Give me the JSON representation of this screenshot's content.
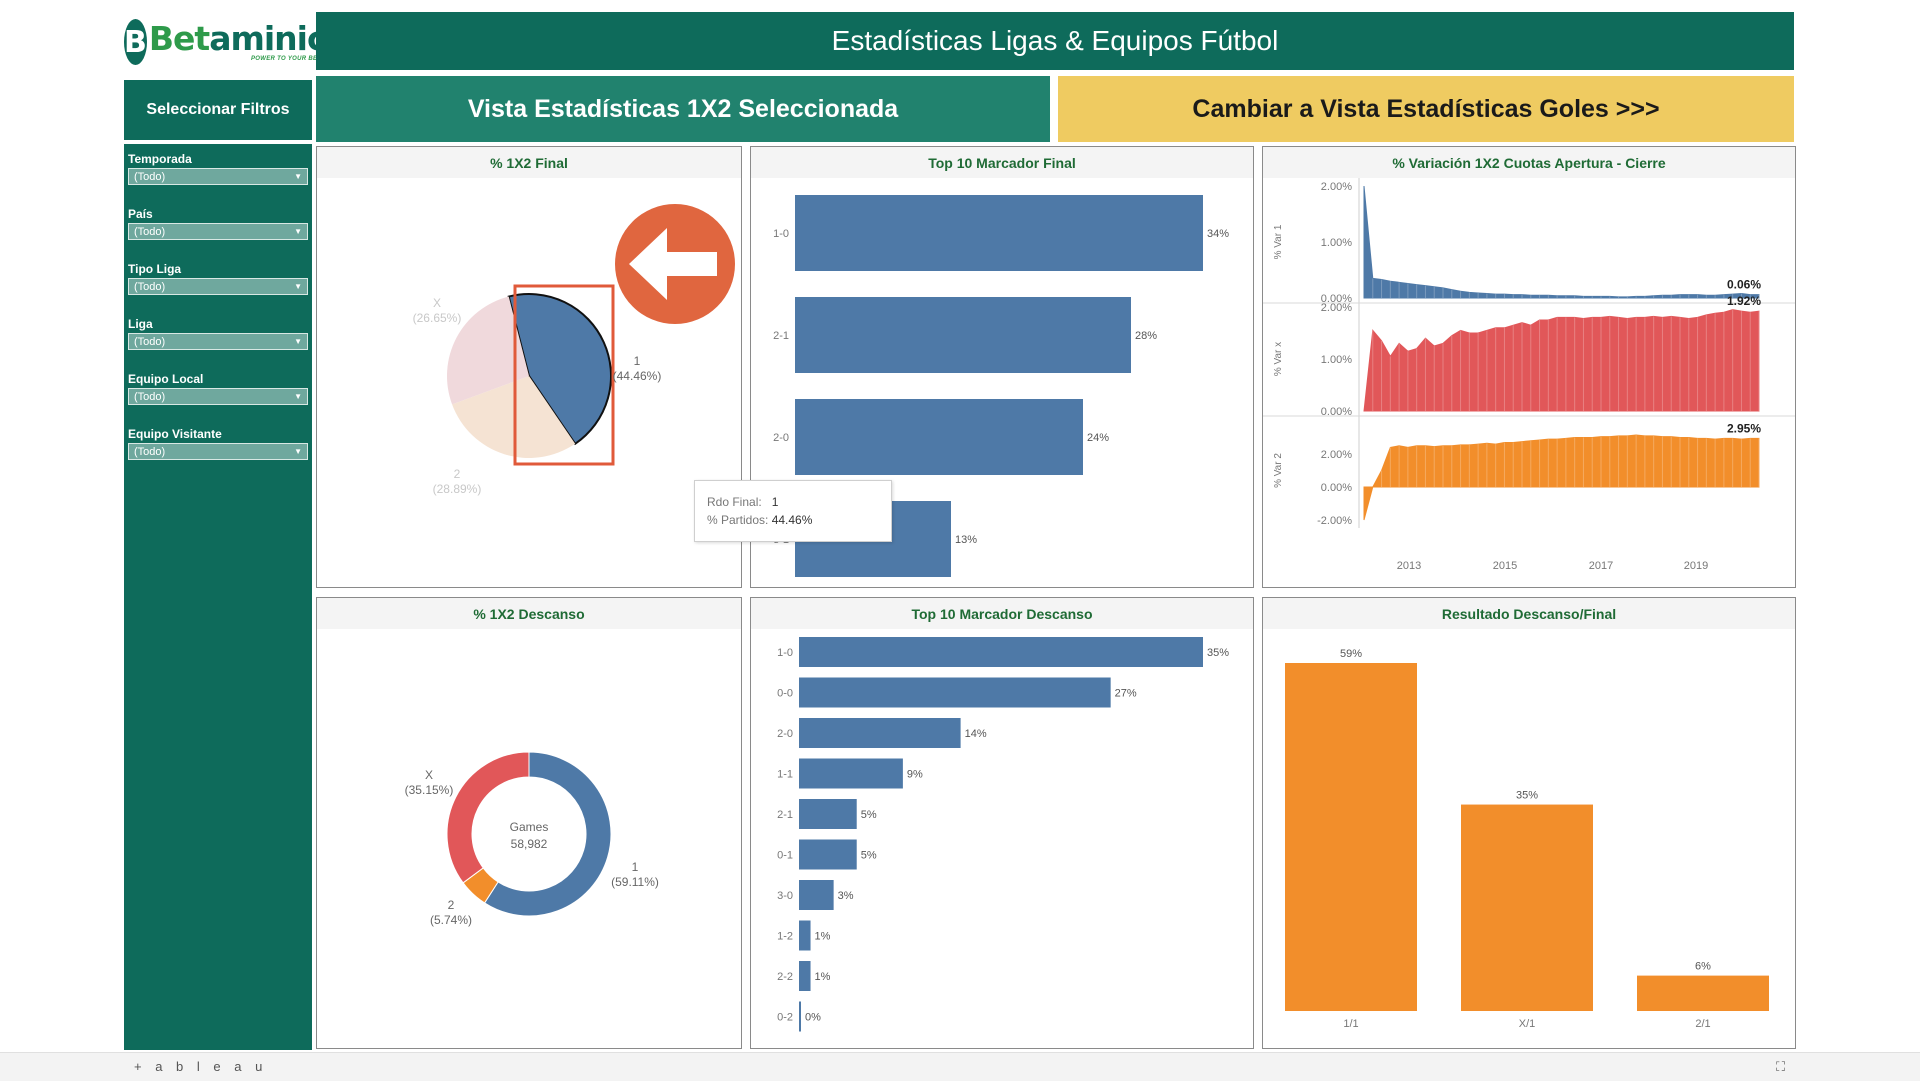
{
  "brand": {
    "logo_letter": "B",
    "name_part1": "Bet",
    "name_part2": "aminic",
    "tagline": "POWER TO YOUR BETS"
  },
  "header": {
    "title": "Estadísticas Ligas & Equipos Fútbol"
  },
  "sidebar": {
    "heading": "Seleccionar Filtros",
    "filters": [
      {
        "label": "Temporada",
        "value": "(Todo)"
      },
      {
        "label": "País",
        "value": "(Todo)"
      },
      {
        "label": "Tipo Liga",
        "value": "(Todo)"
      },
      {
        "label": "Liga",
        "value": "(Todo)"
      },
      {
        "label": "Equipo Local",
        "value": "(Todo)"
      },
      {
        "label": "Equipo Visitante",
        "value": "(Todo)"
      }
    ]
  },
  "view_buttons": {
    "selected": "Vista Estadísticas 1X2 Seleccionada",
    "switch": "Cambiar a Vista Estadísticas Goles >>>"
  },
  "panels": {
    "p1": "% 1X2 Final",
    "p2": "Top 10 Marcador Final",
    "p3": "% Variación 1X2 Cuotas Apertura - Cierre",
    "p4": "% 1X2 Descanso",
    "p5": "Top 10 Marcador Descanso",
    "p6": "Resultado Descanso/Final"
  },
  "tooltip": {
    "label1": "Rdo Final:",
    "value1": "1",
    "label2": "% Partidos:",
    "value2": "44.46%"
  },
  "footer": {
    "brand": "+ a b l e a u",
    "fullscreen_icon": "⛶"
  },
  "colors": {
    "teal": "#0e6b5b",
    "blue": "#4e79a7",
    "red": "#e15759",
    "orange": "#f28e2b",
    "yellow": "#efcb61"
  },
  "chart_data": [
    {
      "type": "pie",
      "title": "% 1X2 Final",
      "slices": [
        {
          "label": "1",
          "pct_text": "(44.46%)",
          "value": 44.46,
          "highlighted": true
        },
        {
          "label": "2",
          "pct_text": "(28.89%)",
          "value": 28.89
        },
        {
          "label": "X",
          "pct_text": "(26.65%)",
          "value": 26.65
        }
      ]
    },
    {
      "type": "bar",
      "title": "Top 10 Marcador Final",
      "categories": [
        "1-0",
        "2-1",
        "2-0",
        "3-1"
      ],
      "values": [
        34,
        28,
        24,
        13
      ],
      "labels": [
        "34%",
        "28%",
        "24%",
        "13%"
      ]
    },
    {
      "type": "area",
      "title": "% Variación 1X2 Cuotas Apertura - Cierre",
      "x_ticks": [
        "2013",
        "2015",
        "2017",
        "2019"
      ],
      "rows": [
        {
          "ylabel": "% Var 1",
          "ticks": [
            "2.00%",
            "1.00%",
            "0.00%"
          ],
          "ylim": [
            0,
            2.0
          ],
          "last_label": "0.06%",
          "color": "#4e79a7",
          "values": [
            2.0,
            0.35,
            0.33,
            0.3,
            0.28,
            0.26,
            0.24,
            0.22,
            0.2,
            0.18,
            0.15,
            0.12,
            0.1,
            0.09,
            0.08,
            0.07,
            0.07,
            0.06,
            0.06,
            0.05,
            0.05,
            0.05,
            0.04,
            0.04,
            0.04,
            0.03,
            0.03,
            0.03,
            0.03,
            0.02,
            0.02,
            0.03,
            0.03,
            0.04,
            0.05,
            0.05,
            0.06,
            0.06,
            0.06,
            0.05,
            0.05,
            0.06,
            0.07,
            0.08,
            0.06,
            0.06
          ]
        },
        {
          "ylabel": "% Var x",
          "ticks": [
            "2.00%",
            "1.00%",
            "0.00%"
          ],
          "ylim": [
            0,
            2.0
          ],
          "last_label": "1.92%",
          "color": "#e15759",
          "values": [
            0.0,
            1.55,
            1.35,
            1.05,
            1.3,
            1.15,
            1.2,
            1.4,
            1.25,
            1.3,
            1.45,
            1.55,
            1.5,
            1.5,
            1.55,
            1.6,
            1.6,
            1.65,
            1.7,
            1.65,
            1.75,
            1.75,
            1.8,
            1.8,
            1.8,
            1.78,
            1.8,
            1.8,
            1.82,
            1.8,
            1.78,
            1.8,
            1.8,
            1.82,
            1.8,
            1.82,
            1.8,
            1.78,
            1.8,
            1.85,
            1.88,
            1.9,
            1.95,
            1.92,
            1.9,
            1.92
          ]
        },
        {
          "ylabel": "% Var 2",
          "ticks": [
            "2.00%",
            "0.00%",
            "-2.00%"
          ],
          "ylim": [
            -2.0,
            4.0
          ],
          "last_label": "2.95%",
          "color": "#f28e2b",
          "values": [
            -2.0,
            0.0,
            1.0,
            2.4,
            2.5,
            2.4,
            2.5,
            2.5,
            2.45,
            2.5,
            2.5,
            2.55,
            2.55,
            2.6,
            2.65,
            2.6,
            2.7,
            2.7,
            2.75,
            2.8,
            2.85,
            2.9,
            2.9,
            2.95,
            3.0,
            3.0,
            3.0,
            3.05,
            3.05,
            3.1,
            3.1,
            3.15,
            3.1,
            3.1,
            3.05,
            3.05,
            3.0,
            3.0,
            2.95,
            2.95,
            2.9,
            2.95,
            2.95,
            2.9,
            2.95,
            2.95
          ]
        }
      ]
    },
    {
      "type": "pie",
      "title": "% 1X2 Descanso",
      "center_label": "Games",
      "center_value": "58,982",
      "slices": [
        {
          "label": "1",
          "pct_text": "(59.11%)",
          "value": 59.11,
          "color": "#4e79a7"
        },
        {
          "label": "2",
          "pct_text": "(5.74%)",
          "value": 5.74,
          "color": "#f28e2b"
        },
        {
          "label": "X",
          "pct_text": "(35.15%)",
          "value": 35.15,
          "color": "#e15759"
        }
      ]
    },
    {
      "type": "bar",
      "title": "Top 10 Marcador Descanso",
      "categories": [
        "1-0",
        "0-0",
        "2-0",
        "1-1",
        "2-1",
        "0-1",
        "3-0",
        "1-2",
        "2-2",
        "0-2"
      ],
      "values": [
        35,
        27,
        14,
        9,
        5,
        5,
        3,
        1,
        1,
        0
      ],
      "labels": [
        "35%",
        "27%",
        "14%",
        "9%",
        "5%",
        "5%",
        "3%",
        "1%",
        "1%",
        "0%"
      ]
    },
    {
      "type": "bar",
      "title": "Resultado Descanso/Final",
      "categories": [
        "1/1",
        "X/1",
        "2/1"
      ],
      "values": [
        59,
        35,
        6
      ],
      "labels": [
        "59%",
        "35%",
        "6%"
      ]
    }
  ]
}
